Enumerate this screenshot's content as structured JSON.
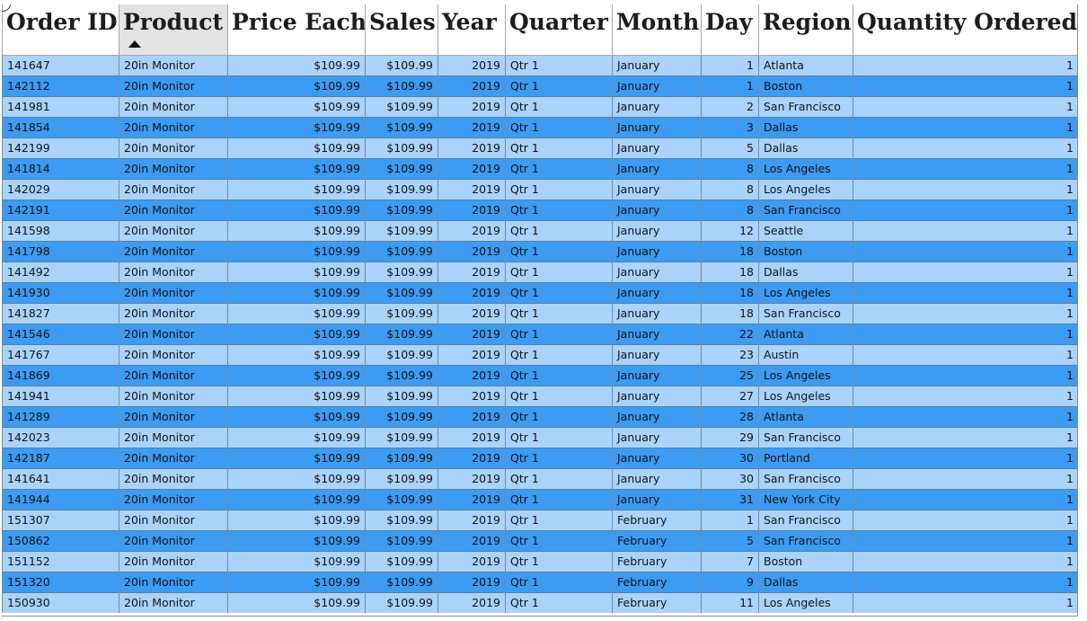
{
  "table": {
    "columns": [
      "Order ID",
      "Product",
      "Price Each",
      "Sales",
      "Year",
      "Quarter",
      "Month",
      "Day",
      "Region",
      "Quantity Ordered"
    ],
    "sorted_column": "Product",
    "sort_direction": "ascending",
    "rows": [
      [
        "141647",
        "20in Monitor",
        "$109.99",
        "$109.99",
        "2019",
        "Qtr 1",
        "January",
        "1",
        "Atlanta",
        "1"
      ],
      [
        "142112",
        "20in Monitor",
        "$109.99",
        "$109.99",
        "2019",
        "Qtr 1",
        "January",
        "1",
        "Boston",
        "1"
      ],
      [
        "141981",
        "20in Monitor",
        "$109.99",
        "$109.99",
        "2019",
        "Qtr 1",
        "January",
        "2",
        "San Francisco",
        "1"
      ],
      [
        "141854",
        "20in Monitor",
        "$109.99",
        "$109.99",
        "2019",
        "Qtr 1",
        "January",
        "3",
        "Dallas",
        "1"
      ],
      [
        "142199",
        "20in Monitor",
        "$109.99",
        "$109.99",
        "2019",
        "Qtr 1",
        "January",
        "5",
        "Dallas",
        "1"
      ],
      [
        "141814",
        "20in Monitor",
        "$109.99",
        "$109.99",
        "2019",
        "Qtr 1",
        "January",
        "8",
        "Los Angeles",
        "1"
      ],
      [
        "142029",
        "20in Monitor",
        "$109.99",
        "$109.99",
        "2019",
        "Qtr 1",
        "January",
        "8",
        "Los Angeles",
        "1"
      ],
      [
        "142191",
        "20in Monitor",
        "$109.99",
        "$109.99",
        "2019",
        "Qtr 1",
        "January",
        "8",
        "San Francisco",
        "1"
      ],
      [
        "141598",
        "20in Monitor",
        "$109.99",
        "$109.99",
        "2019",
        "Qtr 1",
        "January",
        "12",
        "Seattle",
        "1"
      ],
      [
        "141798",
        "20in Monitor",
        "$109.99",
        "$109.99",
        "2019",
        "Qtr 1",
        "January",
        "18",
        "Boston",
        "1"
      ],
      [
        "141492",
        "20in Monitor",
        "$109.99",
        "$109.99",
        "2019",
        "Qtr 1",
        "January",
        "18",
        "Dallas",
        "1"
      ],
      [
        "141930",
        "20in Monitor",
        "$109.99",
        "$109.99",
        "2019",
        "Qtr 1",
        "January",
        "18",
        "Los Angeles",
        "1"
      ],
      [
        "141827",
        "20in Monitor",
        "$109.99",
        "$109.99",
        "2019",
        "Qtr 1",
        "January",
        "18",
        "San Francisco",
        "1"
      ],
      [
        "141546",
        "20in Monitor",
        "$109.99",
        "$109.99",
        "2019",
        "Qtr 1",
        "January",
        "22",
        "Atlanta",
        "1"
      ],
      [
        "141767",
        "20in Monitor",
        "$109.99",
        "$109.99",
        "2019",
        "Qtr 1",
        "January",
        "23",
        "Austin",
        "1"
      ],
      [
        "141869",
        "20in Monitor",
        "$109.99",
        "$109.99",
        "2019",
        "Qtr 1",
        "January",
        "25",
        "Los Angeles",
        "1"
      ],
      [
        "141941",
        "20in Monitor",
        "$109.99",
        "$109.99",
        "2019",
        "Qtr 1",
        "January",
        "27",
        "Los Angeles",
        "1"
      ],
      [
        "141289",
        "20in Monitor",
        "$109.99",
        "$109.99",
        "2019",
        "Qtr 1",
        "January",
        "28",
        "Atlanta",
        "1"
      ],
      [
        "142023",
        "20in Monitor",
        "$109.99",
        "$109.99",
        "2019",
        "Qtr 1",
        "January",
        "29",
        "San Francisco",
        "1"
      ],
      [
        "142187",
        "20in Monitor",
        "$109.99",
        "$109.99",
        "2019",
        "Qtr 1",
        "January",
        "30",
        "Portland",
        "1"
      ],
      [
        "141641",
        "20in Monitor",
        "$109.99",
        "$109.99",
        "2019",
        "Qtr 1",
        "January",
        "30",
        "San Francisco",
        "1"
      ],
      [
        "141944",
        "20in Monitor",
        "$109.99",
        "$109.99",
        "2019",
        "Qtr 1",
        "January",
        "31",
        "New York City",
        "1"
      ],
      [
        "151307",
        "20in Monitor",
        "$109.99",
        "$109.99",
        "2019",
        "Qtr 1",
        "February",
        "1",
        "San Francisco",
        "1"
      ],
      [
        "150862",
        "20in Monitor",
        "$109.99",
        "$109.99",
        "2019",
        "Qtr 1",
        "February",
        "5",
        "San Francisco",
        "1"
      ],
      [
        "151152",
        "20in Monitor",
        "$109.99",
        "$109.99",
        "2019",
        "Qtr 1",
        "February",
        "7",
        "Boston",
        "1"
      ],
      [
        "151320",
        "20in Monitor",
        "$109.99",
        "$109.99",
        "2019",
        "Qtr 1",
        "February",
        "9",
        "Dallas",
        "1"
      ],
      [
        "150930",
        "20in Monitor",
        "$109.99",
        "$109.99",
        "2019",
        "Qtr 1",
        "February",
        "11",
        "Los Angeles",
        "1"
      ]
    ]
  },
  "colors": {
    "row_light": "#a9d3fb",
    "row_dark": "#3c9bf3",
    "header_sorted_bg": "#e3e3e3",
    "header_bg": "#ffffff"
  },
  "icons": {
    "sort_indicator": "sort-ascending-icon"
  }
}
